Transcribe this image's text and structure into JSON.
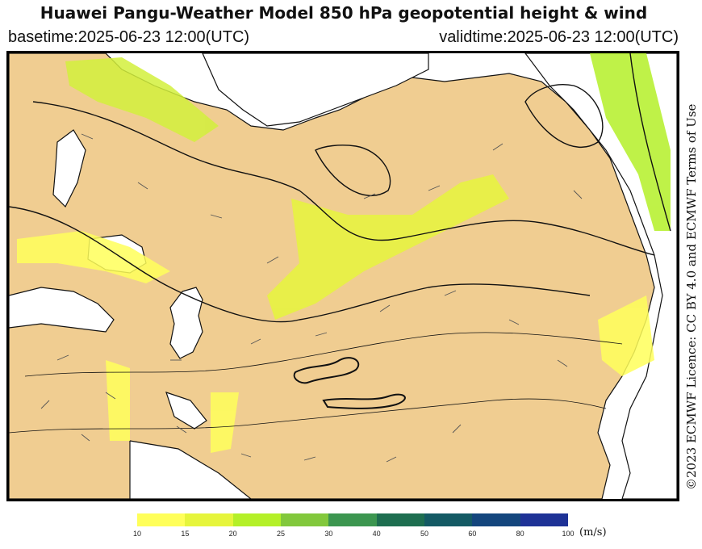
{
  "header": {
    "title": "Huawei Pangu-Weather Model 850 hPa geopotential height & wind",
    "basetime": "basetime:2025-06-23 12:00(UTC)",
    "validtime": "validtime:2025-06-23 12:00(UTC)"
  },
  "license": "©2023 ECMWF Licence: CC BY 4.0 and ECMWF Terms of Use",
  "colorbar": {
    "unit": "(m/s)",
    "ticks": [
      "10",
      "15",
      "20",
      "25",
      "30",
      "40",
      "50",
      "60",
      "80",
      "100"
    ],
    "colors": [
      "#ffff5a",
      "#e6f53c",
      "#b4f028",
      "#82c83c",
      "#3c9650",
      "#1e6e50",
      "#145a64",
      "#14467d",
      "#1e3296"
    ]
  },
  "map": {
    "land_color": "#f0cd91",
    "sea_color": "#ffffff",
    "contour_color": "#111111",
    "wind_shade_color": "#d2f03c"
  }
}
